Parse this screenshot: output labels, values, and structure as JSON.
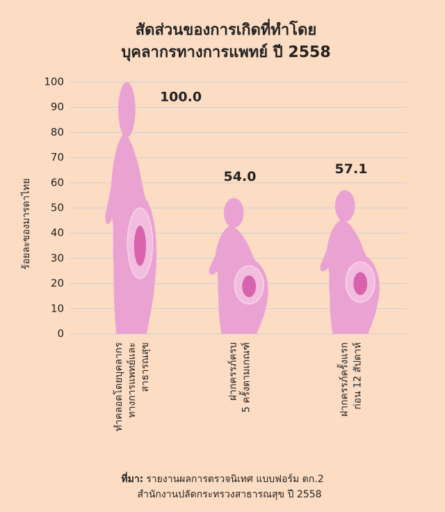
{
  "chart_data": {
    "type": "pictograph",
    "title": [
      "สัดส่วนของการเกิดที่ทำโดย",
      "บุคลากรทางการแพทย์ ปี 2558"
    ],
    "y_label": "ร้อยละของมารดาไทย",
    "categories": [
      [
        "ทำคลอดโดยบุคลากร",
        "ทางการแพทย์และ",
        "สาธารณสุข"
      ],
      [
        "ฝากครรภ์ครบ",
        "5 ครั้งตามเกณฑ์"
      ],
      [
        "ฝากครรภ์ครั้งแรก",
        "ก่อน 12 สัปดาห์"
      ]
    ],
    "values": [
      100.0,
      54.0,
      57.1
    ],
    "value_labels": [
      "100.0",
      "54.0",
      "57.1"
    ],
    "color": "#eaa2d2",
    "ylim": [
      0,
      100
    ],
    "yticks": [
      0,
      10,
      20,
      30,
      40,
      50,
      60,
      70,
      80,
      90,
      100
    ],
    "grid": true,
    "source_label": "ที่มา:",
    "source": [
      "รายงานผลการตรวจนิเทศ แบบฟอร์ม ตก.2",
      "สำนักงานปลัดกระทรวงสาธารณสุข ปี 2558"
    ]
  }
}
